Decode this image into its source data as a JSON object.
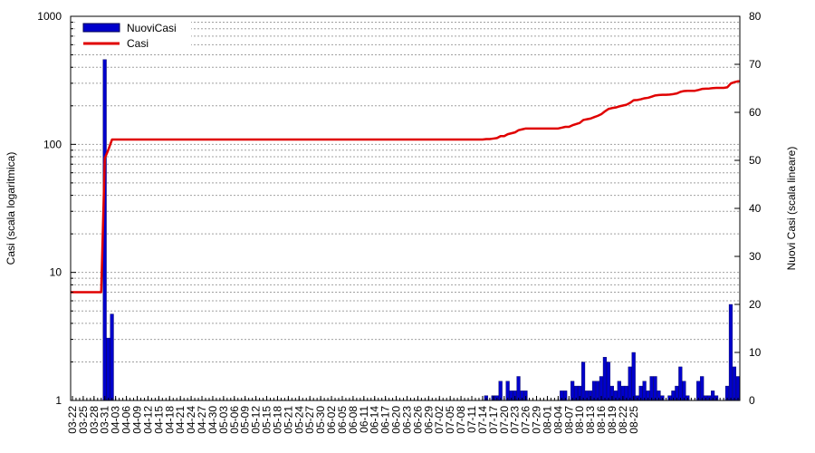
{
  "colors": {
    "bars": "#0000cc",
    "bar_edge": "#000055",
    "line": "#e00000",
    "grid": "#a0a0a0"
  },
  "chart_data": {
    "type": "bar+line",
    "grid": true,
    "legend_position": "top-left",
    "y_left": {
      "label": "Casi (scala logaritmica)",
      "scale": "log",
      "range": [
        1,
        1000
      ],
      "ticks": [
        1,
        10,
        100,
        1000
      ]
    },
    "y_right": {
      "label": "Nuovi Casi (scala lineare)",
      "scale": "linear",
      "range": [
        0,
        80
      ],
      "ticks": [
        0,
        10,
        20,
        30,
        40,
        50,
        60,
        70,
        80
      ]
    },
    "x_ticks": [
      "03-22",
      "03-25",
      "03-28",
      "03-31",
      "04-03",
      "04-06",
      "04-09",
      "04-12",
      "04-15",
      "04-18",
      "04-21",
      "04-24",
      "04-27",
      "04-30",
      "05-03",
      "05-06",
      "05-09",
      "05-12",
      "05-15",
      "05-18",
      "05-21",
      "05-24",
      "05-27",
      "05-30",
      "06-02",
      "06-05",
      "06-08",
      "06-11",
      "06-14",
      "06-17",
      "06-20",
      "06-23",
      "06-26",
      "06-29",
      "07-02",
      "07-05",
      "07-08",
      "07-11",
      "07-14",
      "07-17",
      "07-20",
      "07-23",
      "07-26",
      "07-29",
      "08-01",
      "08-04",
      "08-07",
      "08-10",
      "08-13",
      "08-16",
      "08-19",
      "08-22",
      "08-25"
    ],
    "start_date": "03-22",
    "series": [
      {
        "name": "NuoviCasi",
        "kind": "bar",
        "axis": "right",
        "values": [
          0,
          0,
          0,
          0,
          0,
          0,
          0,
          0,
          0,
          71,
          13,
          18,
          0,
          0,
          0,
          0,
          0,
          0,
          0,
          0,
          0,
          0,
          0,
          0,
          0,
          0,
          0,
          0,
          0,
          0,
          0,
          0,
          0,
          0,
          0,
          0,
          0,
          0,
          0,
          0,
          0,
          0,
          0,
          0,
          0,
          0,
          0,
          0,
          0,
          0,
          0,
          0,
          0,
          0,
          0,
          0,
          0,
          0,
          0,
          0,
          0,
          0,
          0,
          0,
          0,
          0,
          0,
          0,
          0,
          0,
          0,
          0,
          0,
          0,
          0,
          0,
          0,
          0,
          0,
          0,
          0,
          0,
          0,
          0,
          0,
          0,
          0,
          0,
          0,
          0,
          0,
          0,
          0,
          0,
          0,
          0,
          0,
          0,
          0,
          0,
          0,
          0,
          0,
          0,
          0,
          0,
          0,
          0,
          0,
          0,
          0,
          0,
          0,
          0,
          0,
          1,
          0,
          1,
          1,
          4,
          0,
          4,
          2,
          2,
          5,
          2,
          2,
          0,
          0,
          0,
          0,
          0,
          0,
          0,
          0,
          0,
          2,
          2,
          0,
          4,
          3,
          3,
          8,
          2,
          2,
          4,
          4,
          5,
          9,
          8,
          3,
          2,
          4,
          3,
          3,
          7,
          10,
          1,
          3,
          4,
          2,
          5,
          5,
          2,
          1,
          0,
          1,
          2,
          3,
          7,
          4,
          1,
          0,
          0,
          4,
          5,
          1,
          1,
          2,
          1,
          0,
          0,
          3,
          20,
          7,
          5
        ]
      },
      {
        "name": "Casi",
        "kind": "line",
        "axis": "left",
        "values": [
          7,
          7,
          7,
          7,
          7,
          7,
          7,
          7,
          7,
          78,
          91,
          109,
          109,
          109,
          109,
          109,
          109,
          109,
          109,
          109,
          109,
          109,
          109,
          109,
          109,
          109,
          109,
          109,
          109,
          109,
          109,
          109,
          109,
          109,
          109,
          109,
          109,
          109,
          109,
          109,
          109,
          109,
          109,
          109,
          109,
          109,
          109,
          109,
          109,
          109,
          109,
          109,
          109,
          109,
          109,
          109,
          109,
          109,
          109,
          109,
          109,
          109,
          109,
          109,
          109,
          109,
          109,
          109,
          109,
          109,
          109,
          109,
          109,
          109,
          109,
          109,
          109,
          109,
          109,
          109,
          109,
          109,
          109,
          109,
          109,
          109,
          109,
          109,
          109,
          109,
          109,
          109,
          109,
          109,
          109,
          109,
          109,
          109,
          109,
          109,
          109,
          109,
          109,
          109,
          109,
          109,
          109,
          109,
          109,
          109,
          109,
          109,
          109,
          109,
          109,
          110,
          110,
          111,
          112,
          116,
          116,
          120,
          122,
          124,
          129,
          131,
          133,
          133,
          133,
          133,
          133,
          133,
          133,
          133,
          133,
          133,
          135,
          137,
          137,
          141,
          144,
          147,
          155,
          157,
          159,
          163,
          167,
          172,
          181,
          189,
          192,
          194,
          198,
          201,
          204,
          211,
          221,
          222,
          225,
          229,
          231,
          236,
          241,
          243,
          244,
          244,
          245,
          247,
          250,
          257,
          261,
          262,
          262,
          262,
          266,
          271,
          272,
          273,
          275,
          276,
          276,
          276,
          279,
          299,
          306,
          311
        ]
      }
    ]
  }
}
